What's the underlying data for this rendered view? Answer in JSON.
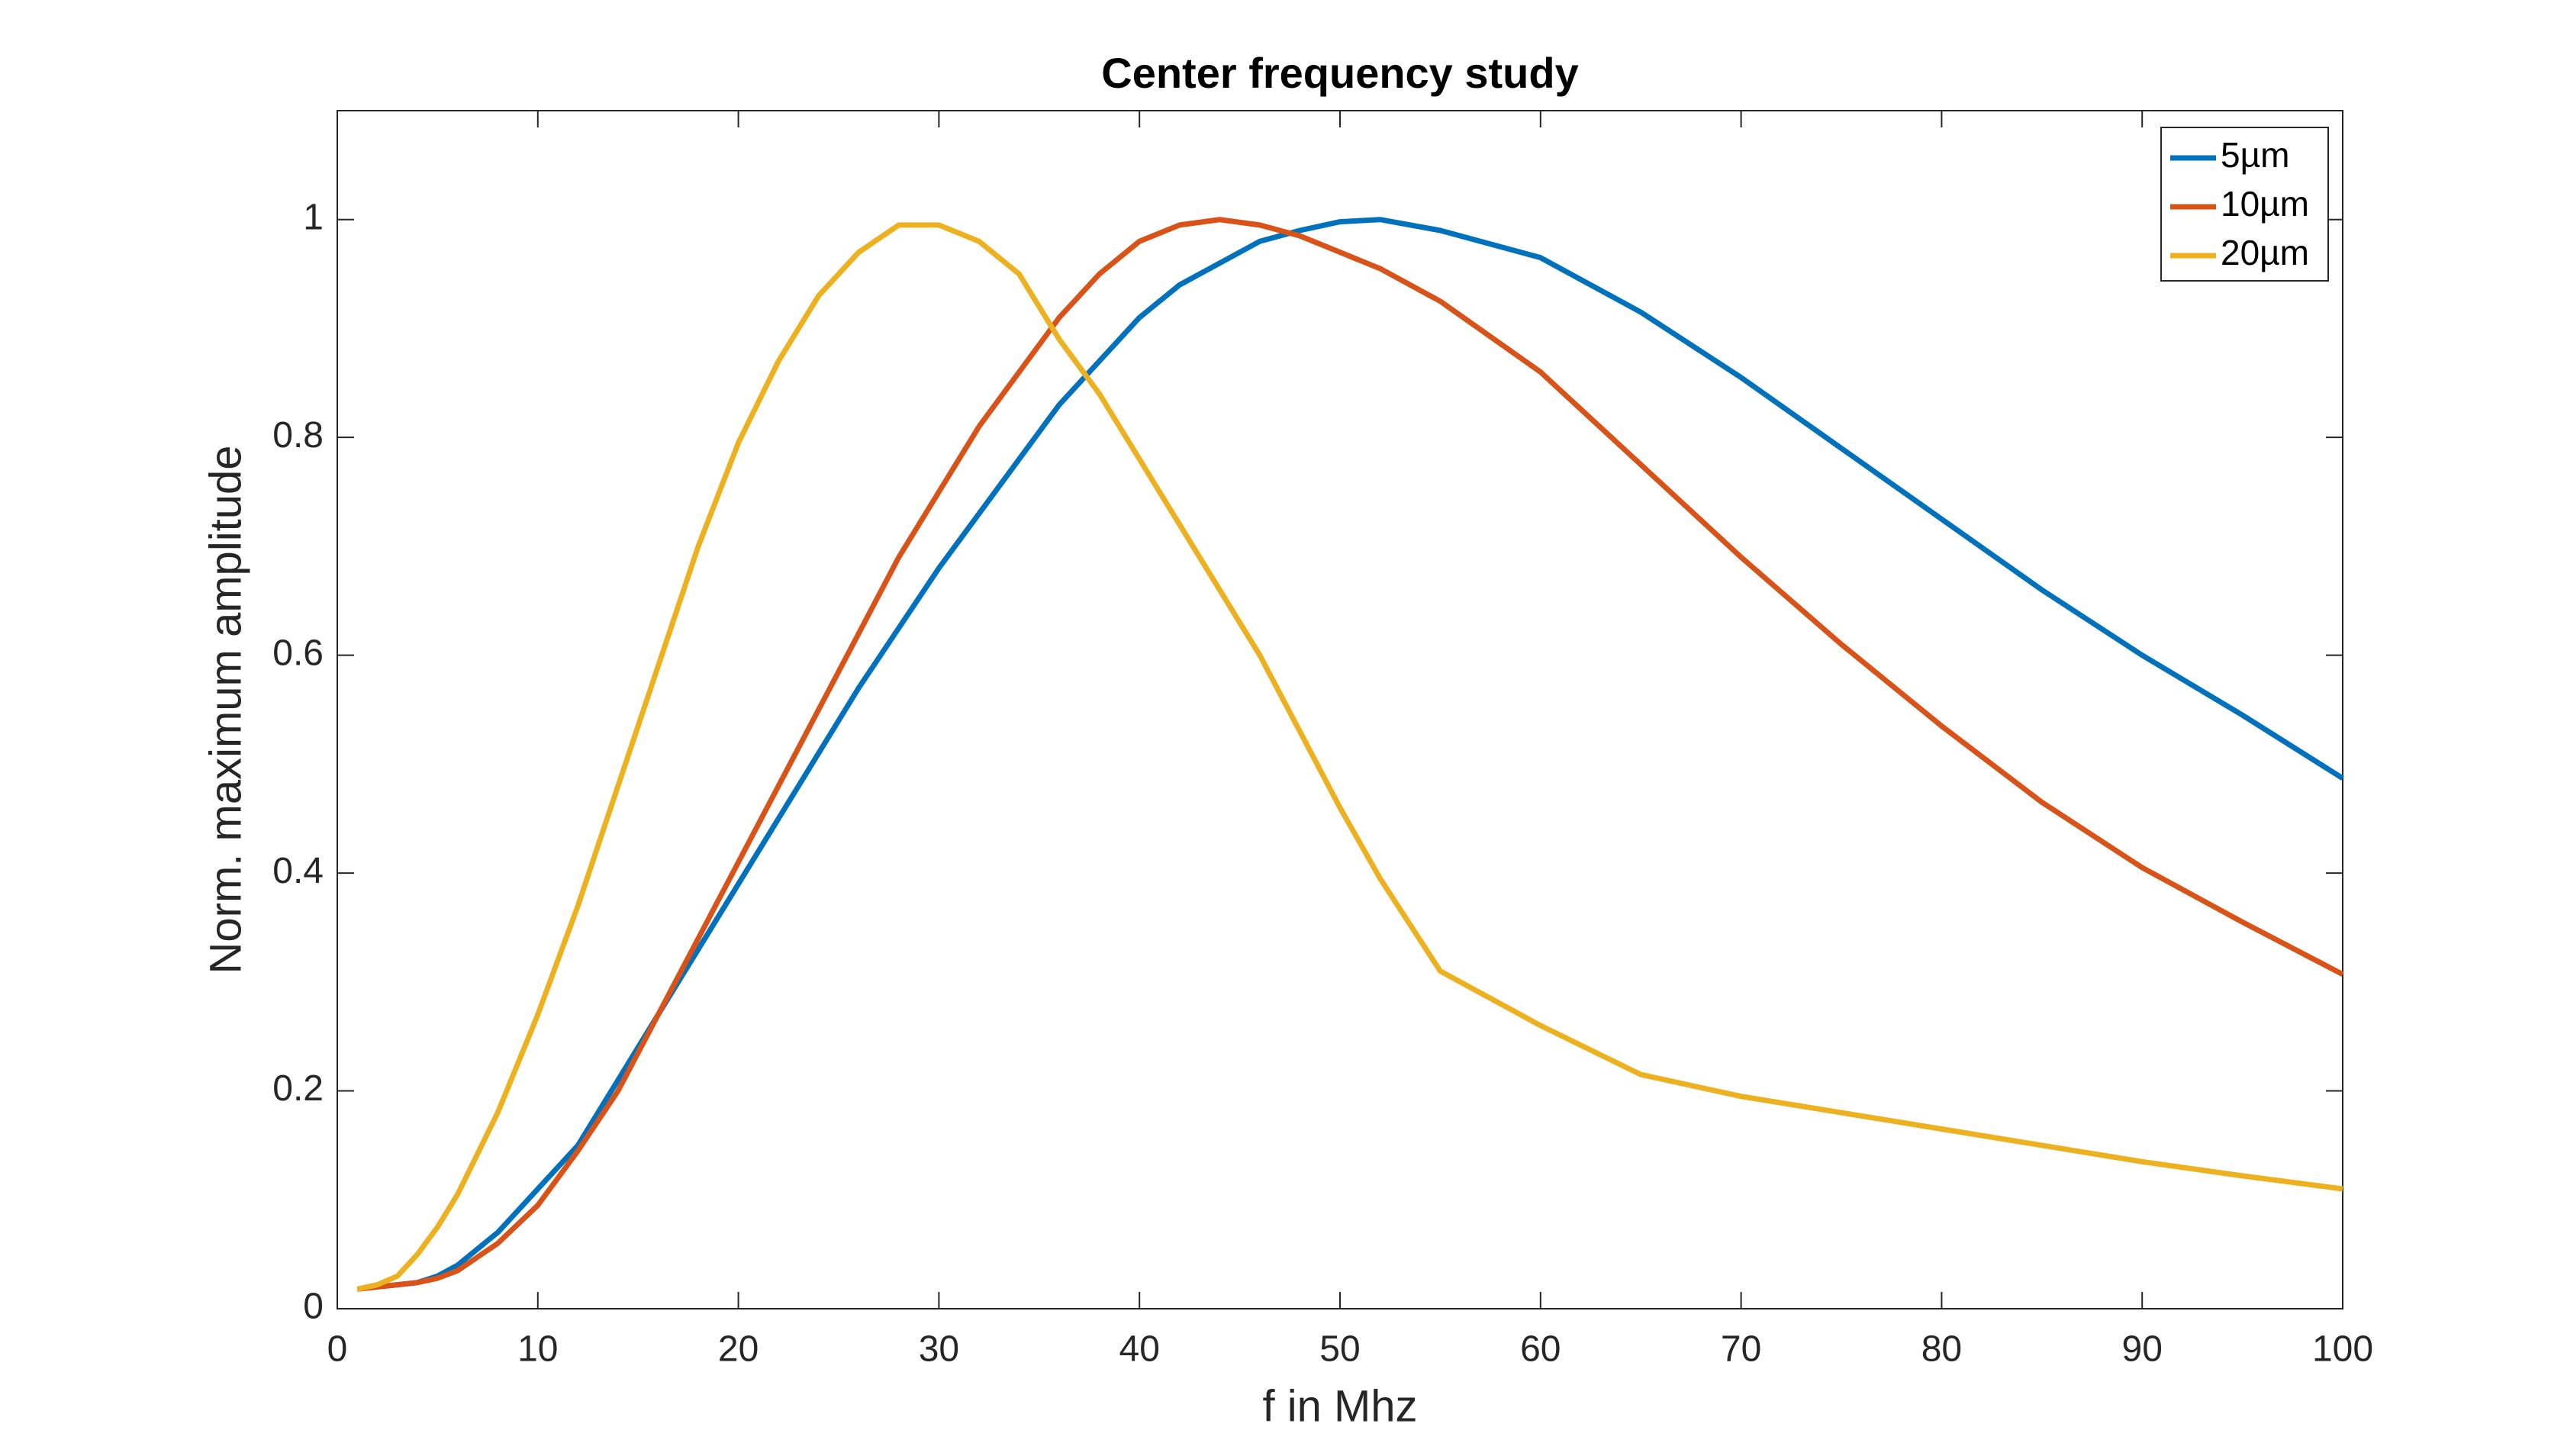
{
  "chart_data": {
    "type": "line",
    "title": "Center frequency study",
    "xlabel": "f in Mhz",
    "ylabel": "Norm. maximum amplitude",
    "x": [
      1,
      2,
      3,
      4,
      5,
      6,
      8,
      10,
      12,
      14,
      16,
      18,
      20,
      22,
      24,
      26,
      28,
      30,
      32,
      34,
      36,
      38,
      40,
      42,
      44,
      46,
      48,
      50,
      52,
      55,
      60,
      65,
      70,
      75,
      80,
      85,
      90,
      95,
      100
    ],
    "series": [
      {
        "name": "5µm",
        "color": "#0072BD",
        "values": [
          0.018,
          0.02,
          0.022,
          0.024,
          0.03,
          0.04,
          0.07,
          0.11,
          0.15,
          0.21,
          0.27,
          0.33,
          0.39,
          0.45,
          0.51,
          0.57,
          0.625,
          0.68,
          0.73,
          0.78,
          0.83,
          0.87,
          0.91,
          0.94,
          0.96,
          0.98,
          0.99,
          0.998,
          1.0,
          0.99,
          0.965,
          0.915,
          0.855,
          0.79,
          0.725,
          0.66,
          0.6,
          0.545,
          0.487
        ]
      },
      {
        "name": "10µm",
        "color": "#D95319",
        "values": [
          0.018,
          0.02,
          0.022,
          0.024,
          0.028,
          0.035,
          0.06,
          0.095,
          0.145,
          0.2,
          0.27,
          0.34,
          0.41,
          0.48,
          0.55,
          0.62,
          0.69,
          0.75,
          0.81,
          0.86,
          0.91,
          0.95,
          0.98,
          0.995,
          1.0,
          0.995,
          0.985,
          0.97,
          0.955,
          0.925,
          0.86,
          0.775,
          0.69,
          0.61,
          0.535,
          0.465,
          0.405,
          0.355,
          0.307
        ]
      },
      {
        "name": "20µm",
        "color": "#EDB120",
        "values": [
          0.018,
          0.022,
          0.03,
          0.05,
          0.075,
          0.105,
          0.18,
          0.27,
          0.37,
          0.48,
          0.59,
          0.7,
          0.795,
          0.87,
          0.93,
          0.97,
          0.995,
          0.995,
          0.98,
          0.95,
          0.89,
          0.84,
          0.78,
          0.72,
          0.66,
          0.6,
          0.53,
          0.46,
          0.395,
          0.31,
          0.26,
          0.215,
          0.195,
          0.18,
          0.165,
          0.15,
          0.135,
          0.122,
          0.11
        ]
      }
    ],
    "xlim": [
      0,
      100
    ],
    "xticks": [
      0,
      10,
      20,
      30,
      40,
      50,
      60,
      70,
      80,
      90,
      100
    ],
    "ylim": [
      0,
      1.1
    ],
    "yticks": [
      0,
      0.2,
      0.4,
      0.6,
      0.8,
      1
    ],
    "legend": "top-right"
  }
}
